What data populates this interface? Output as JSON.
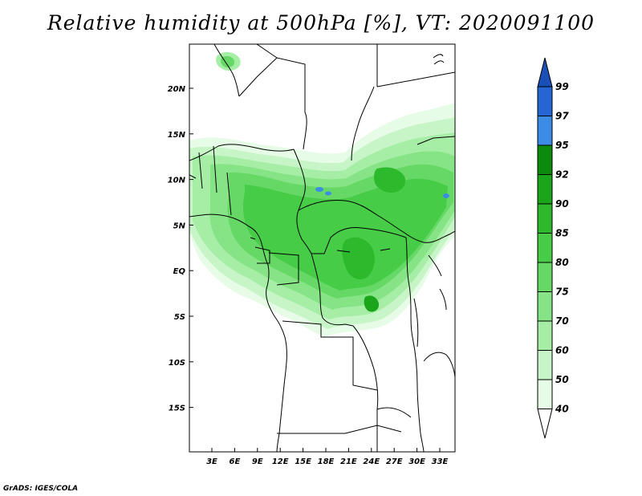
{
  "title": "Relative humidity at 500hPa [%], VT: 2020091100",
  "credit": "GrADS: IGES/COLA",
  "map": {
    "lon_range": [
      0,
      35
    ],
    "lat_range": [
      -20,
      25
    ],
    "x_ticks": [
      "3E",
      "6E",
      "9E",
      "12E",
      "15E",
      "18E",
      "21E",
      "24E",
      "27E",
      "30E",
      "33E"
    ],
    "y_ticks": [
      "20N",
      "15N",
      "10N",
      "5N",
      "EQ",
      "5S",
      "10S",
      "15S"
    ],
    "field": "relative humidity at 500hPa"
  },
  "colorbar": {
    "levels": [
      "40",
      "50",
      "60",
      "70",
      "75",
      "80",
      "85",
      "90",
      "92",
      "95",
      "97",
      "99"
    ],
    "colors": [
      "#ffffff",
      "#e6fce6",
      "#c8f5c8",
      "#a6eea6",
      "#86e486",
      "#66d866",
      "#46cc46",
      "#2cba2c",
      "#1aa51a",
      "#0b8a0b",
      "#3c8ce6",
      "#2566d4",
      "#1b4fb8"
    ]
  }
}
